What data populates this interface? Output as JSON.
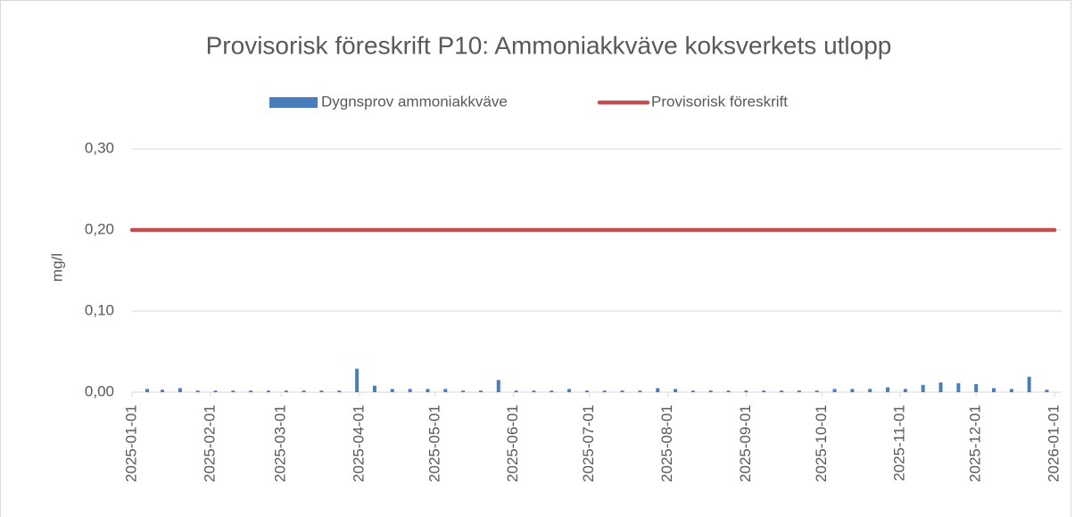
{
  "chart_data": {
    "type": "bar",
    "title": "Provisorisk föreskrift P10: Ammoniakkväve koksverkets utlopp",
    "ylabel": "mg/l",
    "ylim": [
      0,
      0.3
    ],
    "yticks": [
      {
        "value": 0,
        "label": "0,00"
      },
      {
        "value": 0.1,
        "label": "0,10"
      },
      {
        "value": 0.2,
        "label": "0,20"
      },
      {
        "value": 0.3,
        "label": "0,30"
      }
    ],
    "xlim": [
      "2025-01-01",
      "2026-01-01"
    ],
    "xticks": [
      "2025-01-01",
      "2025-02-01",
      "2025-03-01",
      "2025-04-01",
      "2025-05-01",
      "2025-06-01",
      "2025-07-01",
      "2025-08-01",
      "2025-09-01",
      "2025-10-01",
      "2025-11-01",
      "2025-12-01",
      "2026-01-01"
    ],
    "grid": true,
    "legend": "top",
    "series": [
      {
        "name": "Dygnsprov ammoniakkväve",
        "type": "bar",
        "color": "#4a7ebb",
        "x": [
          "2025-01-07",
          "2025-01-13",
          "2025-01-20",
          "2025-01-27",
          "2025-02-03",
          "2025-02-10",
          "2025-02-17",
          "2025-02-24",
          "2025-03-03",
          "2025-03-10",
          "2025-03-17",
          "2025-03-24",
          "2025-03-31",
          "2025-04-07",
          "2025-04-14",
          "2025-04-21",
          "2025-04-28",
          "2025-05-05",
          "2025-05-12",
          "2025-05-19",
          "2025-05-26",
          "2025-06-02",
          "2025-06-09",
          "2025-06-16",
          "2025-06-23",
          "2025-06-30",
          "2025-07-07",
          "2025-07-14",
          "2025-07-21",
          "2025-07-28",
          "2025-08-04",
          "2025-08-11",
          "2025-08-18",
          "2025-08-25",
          "2025-09-01",
          "2025-09-08",
          "2025-09-15",
          "2025-09-22",
          "2025-09-29",
          "2025-10-06",
          "2025-10-13",
          "2025-10-20",
          "2025-10-27",
          "2025-11-03",
          "2025-11-10",
          "2025-11-17",
          "2025-11-24",
          "2025-12-01",
          "2025-12-08",
          "2025-12-15",
          "2025-12-22",
          "2025-12-29"
        ],
        "values": [
          0.004,
          0.003,
          0.005,
          0.002,
          0.002,
          0.002,
          0.002,
          0.002,
          0.002,
          0.002,
          0.002,
          0.002,
          0.029,
          0.008,
          0.004,
          0.004,
          0.004,
          0.004,
          0.002,
          0.002,
          0.015,
          0.002,
          0.002,
          0.002,
          0.004,
          0.002,
          0.002,
          0.002,
          0.002,
          0.005,
          0.004,
          0.002,
          0.002,
          0.002,
          0.002,
          0.002,
          0.002,
          0.002,
          0.002,
          0.004,
          0.004,
          0.004,
          0.006,
          0.004,
          0.009,
          0.012,
          0.011,
          0.01,
          0.005,
          0.004,
          0.019,
          0.003
        ]
      },
      {
        "name": "Provisorisk föreskrift",
        "type": "line",
        "color": "#c0504d",
        "x": [
          "2025-01-01",
          "2026-01-01"
        ],
        "values": [
          0.2,
          0.2
        ]
      }
    ]
  }
}
